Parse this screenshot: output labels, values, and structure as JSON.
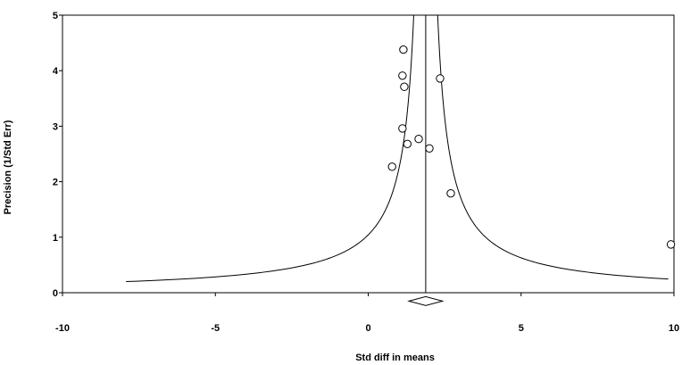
{
  "chart_data": {
    "type": "scatter",
    "title": "",
    "xlabel": "Std diff in means",
    "ylabel": "Precision (1/Std Err)",
    "xlim": [
      -10,
      10
    ],
    "ylim": [
      0,
      5
    ],
    "xticks": [
      "-10",
      "-5",
      "0",
      "5",
      "10"
    ],
    "yticks": [
      "0",
      "1",
      "2",
      "3",
      "4",
      "5"
    ],
    "grid": false,
    "pooled_estimate": 1.88,
    "funnel_multiplier": 1.96,
    "summary_diamond": {
      "center": 1.88,
      "low": 1.33,
      "high": 2.43,
      "y": -0.15
    },
    "points": [
      {
        "x": 1.15,
        "y": 4.38
      },
      {
        "x": 1.12,
        "y": 3.91
      },
      {
        "x": 1.18,
        "y": 3.71
      },
      {
        "x": 2.35,
        "y": 3.86
      },
      {
        "x": 1.12,
        "y": 2.96
      },
      {
        "x": 1.65,
        "y": 2.77
      },
      {
        "x": 1.28,
        "y": 2.68
      },
      {
        "x": 2.0,
        "y": 2.6
      },
      {
        "x": 0.78,
        "y": 2.27
      },
      {
        "x": 2.7,
        "y": 1.79
      },
      {
        "x": 9.9,
        "y": 0.87
      }
    ]
  }
}
